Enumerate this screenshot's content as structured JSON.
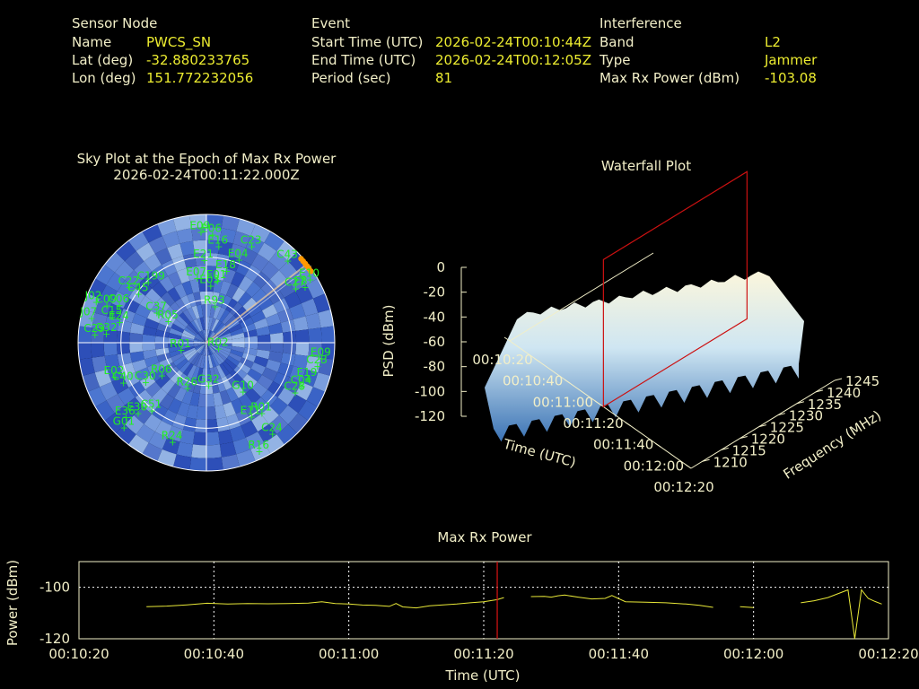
{
  "sensor": {
    "heading": "Sensor Node",
    "fields": [
      {
        "label": "Name",
        "value": "PWCS_SN"
      },
      {
        "label": "Lat (deg)",
        "value": "-32.880233765"
      },
      {
        "label": "Lon (deg)",
        "value": "151.772232056"
      }
    ]
  },
  "event": {
    "heading": "Event",
    "fields": [
      {
        "label": "Start Time (UTC)",
        "value": "2026-02-24T00:10:44Z"
      },
      {
        "label": "End Time (UTC)",
        "value": "2026-02-24T00:12:05Z"
      },
      {
        "label": "Period (sec)",
        "value": "81"
      }
    ]
  },
  "interference": {
    "heading": "Interference",
    "fields": [
      {
        "label": "Band",
        "value": "L2"
      },
      {
        "label": "Type",
        "value": "Jammer"
      },
      {
        "label": "Max Rx Power (dBm)",
        "value": "-103.08"
      }
    ]
  },
  "colors": {
    "background": "#000000",
    "text": "#f2efc8",
    "value_text": "#ecec30",
    "satellite_labels": "#22ee22",
    "marker": "#cc1111",
    "power_line": "#e8e838",
    "jammer_direction": "#ff9900"
  },
  "chart_data": [
    {
      "type": "scatter",
      "subtype": "polar-sky-plot",
      "title": "Sky Plot at the Epoch of Max Rx Power",
      "subtitle": "2026-02-24T00:11:22.000Z",
      "rings_elevation_deg": [
        0,
        30,
        60
      ],
      "jammer_azimuth_deg": 52,
      "satellites": [
        {
          "id": "E09",
          "az": 356,
          "el": 12
        },
        {
          "id": "E06",
          "az": 2,
          "el": 14
        },
        {
          "id": "C23",
          "az": 24,
          "el": 16
        },
        {
          "id": "E16",
          "az": 6,
          "el": 22
        },
        {
          "id": "E04",
          "az": 20,
          "el": 28
        },
        {
          "id": "E21",
          "az": 357,
          "el": 32
        },
        {
          "id": "E18",
          "az": 14,
          "el": 38
        },
        {
          "id": "C43",
          "az": 44,
          "el": 10
        },
        {
          "id": "E10",
          "az": 58,
          "el": 6
        },
        {
          "id": "E8",
          "az": 60,
          "el": 12
        },
        {
          "id": "C27",
          "az": 58,
          "el": 18
        },
        {
          "id": "E01",
          "az": 8,
          "el": 46
        },
        {
          "id": "E03",
          "az": 2,
          "el": 50
        },
        {
          "id": "E07",
          "az": 350,
          "el": 44
        },
        {
          "id": "C22",
          "az": 305,
          "el": 22
        },
        {
          "id": "C199",
          "az": 315,
          "el": 30
        },
        {
          "id": "C45",
          "az": 305,
          "el": 30
        },
        {
          "id": "J02",
          "az": 290,
          "el": 6
        },
        {
          "id": "C09",
          "az": 290,
          "el": 14
        },
        {
          "id": "C06",
          "az": 293,
          "el": 22
        },
        {
          "id": "C15",
          "az": 285,
          "el": 20
        },
        {
          "id": "J07",
          "az": 282,
          "el": 6
        },
        {
          "id": "G32",
          "az": 275,
          "el": 18
        },
        {
          "id": "E24",
          "az": 283,
          "el": 26
        },
        {
          "id": "C29",
          "az": 274,
          "el": 10
        },
        {
          "id": "C37",
          "az": 300,
          "el": 48
        },
        {
          "id": "R05",
          "az": 298,
          "el": 58
        },
        {
          "id": "R93",
          "az": 10,
          "el": 64
        },
        {
          "id": "R01",
          "az": 255,
          "el": 70
        },
        {
          "id": "R02",
          "az": 120,
          "el": 82
        },
        {
          "id": "E02",
          "az": 250,
          "el": 20
        },
        {
          "id": "C40",
          "az": 245,
          "el": 24
        },
        {
          "id": "C30",
          "az": 238,
          "el": 38
        },
        {
          "id": "R06",
          "az": 235,
          "el": 50
        },
        {
          "id": "R26",
          "az": 205,
          "el": 55
        },
        {
          "id": "G32",
          "az": 180,
          "el": 60
        },
        {
          "id": "G10",
          "az": 145,
          "el": 48
        },
        {
          "id": "E30",
          "az": 225,
          "el": 20
        },
        {
          "id": "C51",
          "az": 220,
          "el": 28
        },
        {
          "id": "E36",
          "az": 228,
          "el": 12
        },
        {
          "id": "G01",
          "az": 225,
          "el": 6
        },
        {
          "id": "R24",
          "az": 200,
          "el": 16
        },
        {
          "id": "E11",
          "az": 150,
          "el": 30
        },
        {
          "id": "R01",
          "az": 143,
          "el": 28
        },
        {
          "id": "C28",
          "az": 120,
          "el": 20
        },
        {
          "id": "C04",
          "az": 115,
          "el": 18
        },
        {
          "id": "E19",
          "az": 110,
          "el": 16
        },
        {
          "id": "C23",
          "az": 102,
          "el": 12
        },
        {
          "id": "E09",
          "az": 98,
          "el": 10
        },
        {
          "id": "C24",
          "az": 145,
          "el": 12
        },
        {
          "id": "R16",
          "az": 155,
          "el": 6
        }
      ]
    },
    {
      "type": "area",
      "subtype": "3d-waterfall-surface",
      "title": "Waterfall Plot",
      "xlabel": "Time (UTC)",
      "ylabel": "Frequency (MHz)",
      "zlabel": "PSD (dBm)",
      "x_ticks": [
        "00:10:20",
        "00:10:40",
        "00:11:00",
        "00:11:20",
        "00:11:40",
        "00:12:00",
        "00:12:20"
      ],
      "y_ticks": [
        "1210",
        "1215",
        "1220",
        "1225",
        "1230",
        "1235",
        "1240",
        "1245"
      ],
      "z_ticks": [
        "0",
        "-20",
        "-40",
        "-60",
        "-80",
        "-100",
        "-120"
      ],
      "xlim": [
        "00:10:20",
        "00:12:20"
      ],
      "ylim": [
        1207,
        1245
      ],
      "zlim": [
        -120,
        0
      ],
      "marker_time": "00:11:22"
    },
    {
      "type": "line",
      "title": "Max Rx Power",
      "xlabel": "Time (UTC)",
      "ylabel": "Power (dBm)",
      "x_ticks": [
        "00:10:20",
        "00:10:40",
        "00:11:00",
        "00:11:20",
        "00:11:40",
        "00:12:00",
        "00:12:20"
      ],
      "y_ticks": [
        "-100",
        "-120"
      ],
      "xlim": [
        "00:10:20",
        "00:12:20"
      ],
      "ylim": [
        -120,
        -90
      ],
      "grid": true,
      "marker_time": "00:11:22",
      "series": [
        {
          "segments": [
            [
              [
                "00:10:30",
                -107.5
              ],
              [
                "00:10:33",
                -107.3
              ],
              [
                "00:10:36",
                -106.8
              ],
              [
                "00:10:39",
                -106.2
              ],
              [
                "00:10:42",
                -106.5
              ],
              [
                "00:10:45",
                -106.3
              ],
              [
                "00:10:48",
                -106.4
              ],
              [
                "00:10:51",
                -106.3
              ],
              [
                "00:10:54",
                -106.1
              ],
              [
                "00:10:56",
                -105.6
              ],
              [
                "00:10:58",
                -106.3
              ],
              [
                "00:11:00",
                -106.5
              ],
              [
                "00:11:02",
                -106.9
              ],
              [
                "00:11:04",
                -107.0
              ],
              [
                "00:11:06",
                -107.4
              ],
              [
                "00:11:07",
                -106.3
              ],
              [
                "00:11:08",
                -107.6
              ],
              [
                "00:11:10",
                -108.0
              ],
              [
                "00:11:12",
                -107.2
              ],
              [
                "00:11:14",
                -106.8
              ],
              [
                "00:11:16",
                -106.5
              ],
              [
                "00:11:18",
                -106.0
              ],
              [
                "00:11:20",
                -105.6
              ],
              [
                "00:11:22",
                -104.8
              ],
              [
                "00:11:23",
                -104.0
              ]
            ],
            [
              [
                "00:11:27",
                -103.6
              ],
              [
                "00:11:29",
                -103.5
              ],
              [
                "00:11:30",
                -103.8
              ],
              [
                "00:11:31",
                -103.3
              ],
              [
                "00:11:32",
                -103.0
              ],
              [
                "00:11:34",
                -103.8
              ],
              [
                "00:11:36",
                -104.5
              ],
              [
                "00:11:38",
                -104.3
              ],
              [
                "00:11:39",
                -103.2
              ],
              [
                "00:11:41",
                -105.6
              ],
              [
                "00:11:44",
                -105.8
              ],
              [
                "00:11:47",
                -106.0
              ],
              [
                "00:11:50",
                -106.5
              ],
              [
                "00:11:52",
                -107.0
              ],
              [
                "00:11:54",
                -107.8
              ]
            ],
            [
              [
                "00:11:58",
                -107.5
              ],
              [
                "00:12:00",
                -107.9
              ]
            ],
            [
              [
                "00:12:07",
                -106.0
              ],
              [
                "00:12:09",
                -105.2
              ],
              [
                "00:12:11",
                -104.0
              ],
              [
                "00:12:13",
                -102.0
              ],
              [
                "00:12:14",
                -101.0
              ],
              [
                "00:12:15",
                -120.0
              ],
              [
                "00:12:16",
                -101.0
              ],
              [
                "00:12:17",
                -104.3
              ],
              [
                "00:12:18",
                -105.5
              ],
              [
                "00:12:19",
                -106.5
              ]
            ]
          ]
        }
      ]
    }
  ]
}
